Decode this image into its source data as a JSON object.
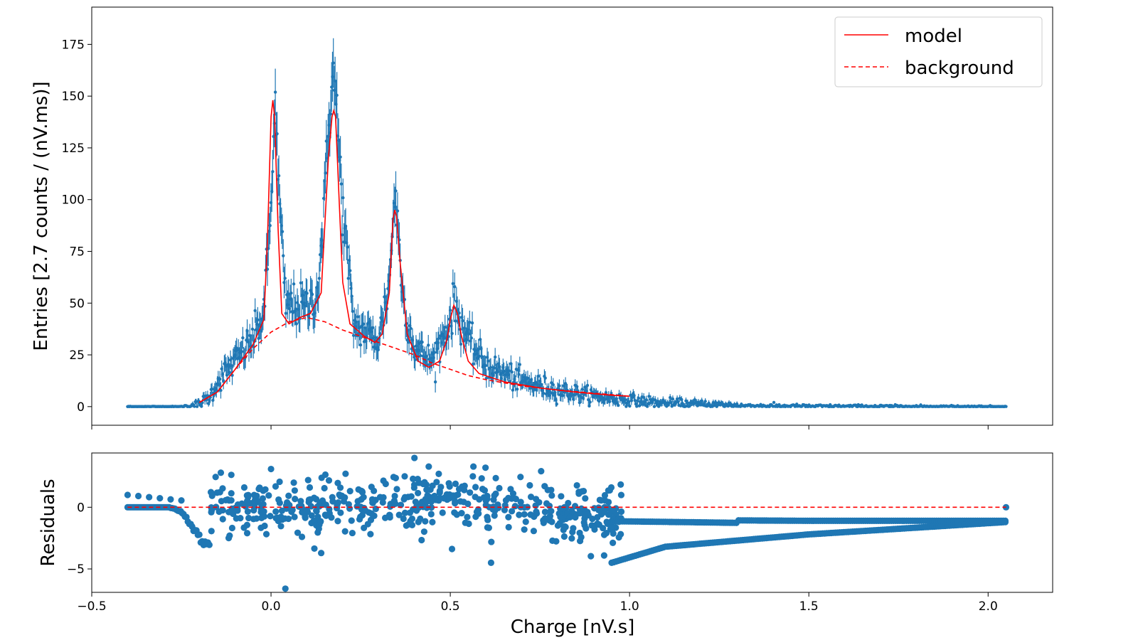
{
  "chart_data": [
    {
      "panel": "main",
      "type": "scatter",
      "title": "",
      "xlabel": "",
      "ylabel": "Entries [2.7 counts / (nV.ms)]",
      "xlim": [
        -0.5,
        2.18
      ],
      "ylim": [
        -9,
        193
      ],
      "xticks": [
        -0.5,
        0.0,
        0.5,
        1.0,
        1.5,
        2.0
      ],
      "yticks": [
        0,
        25,
        50,
        75,
        100,
        125,
        150,
        175
      ],
      "ytick_labels": [
        "0",
        "25",
        "50",
        "75",
        "100",
        "125",
        "150",
        "175"
      ],
      "legend": {
        "position": "top-right",
        "entries": [
          {
            "label": "model",
            "style": "solid",
            "color": "#ff0000"
          },
          {
            "label": "background",
            "style": "dashed",
            "color": "#ff0000"
          }
        ]
      },
      "series": [
        {
          "role": "data with error bars",
          "color": "#1f77b4",
          "x_range": [
            -0.4,
            2.05
          ],
          "profile_x": [
            -0.4,
            -0.25,
            -0.2,
            -0.17,
            -0.15,
            -0.1,
            -0.05,
            -0.02,
            0.0,
            0.01,
            0.02,
            0.04,
            0.1,
            0.13,
            0.15,
            0.17,
            0.18,
            0.2,
            0.23,
            0.27,
            0.3,
            0.33,
            0.345,
            0.37,
            0.4,
            0.45,
            0.5,
            0.51,
            0.55,
            0.6,
            0.7,
            0.8,
            0.9,
            1.0,
            1.1,
            1.3,
            1.5,
            2.05
          ],
          "profile_y": [
            0,
            0,
            1,
            5,
            12,
            22,
            33,
            45,
            95,
            150,
            110,
            50,
            48,
            55,
            100,
            165,
            150,
            95,
            40,
            35,
            32,
            60,
            105,
            50,
            28,
            22,
            42,
            50,
            32,
            20,
            12,
            8,
            5,
            3,
            1.5,
            0.5,
            0.2,
            0
          ]
        },
        {
          "name": "model",
          "color": "#ff0000",
          "style": "solid",
          "x": [
            -0.2,
            -0.15,
            -0.1,
            -0.05,
            -0.02,
            -0.01,
            0.0,
            0.005,
            0.01,
            0.02,
            0.03,
            0.05,
            0.08,
            0.11,
            0.14,
            0.16,
            0.17,
            0.175,
            0.18,
            0.19,
            0.2,
            0.22,
            0.26,
            0.29,
            0.31,
            0.33,
            0.34,
            0.345,
            0.35,
            0.36,
            0.38,
            0.41,
            0.44,
            0.47,
            0.49,
            0.5,
            0.51,
            0.52,
            0.53,
            0.55,
            0.58,
            0.65,
            0.75,
            0.85,
            0.95,
            1.0
          ],
          "y": [
            2,
            7,
            18,
            30,
            42,
            80,
            140,
            148,
            140,
            85,
            45,
            40,
            43,
            45,
            55,
            120,
            140,
            143,
            140,
            100,
            60,
            40,
            34,
            31,
            35,
            55,
            90,
            95,
            92,
            70,
            35,
            22,
            19,
            22,
            32,
            42,
            49,
            45,
            35,
            22,
            16,
            12,
            9,
            7,
            5.5,
            5
          ]
        },
        {
          "name": "background",
          "color": "#ff0000",
          "style": "dashed",
          "x": [
            -0.2,
            -0.15,
            -0.1,
            -0.05,
            0.0,
            0.05,
            0.1,
            0.15,
            0.2,
            0.25,
            0.3,
            0.35,
            0.4,
            0.45,
            0.5,
            0.55,
            0.6,
            0.7,
            0.8,
            0.9,
            1.0
          ],
          "y": [
            2,
            7,
            18,
            28,
            36,
            41,
            43,
            41,
            37,
            34,
            31,
            28,
            25,
            21,
            18,
            15,
            13,
            10,
            8,
            6.5,
            5
          ]
        }
      ]
    },
    {
      "panel": "residuals",
      "type": "scatter",
      "title": "",
      "xlabel": "Charge [nV.s]",
      "ylabel": "Residuals",
      "xlim": [
        -0.5,
        2.18
      ],
      "ylim": [
        -6.9,
        4.4
      ],
      "xticks": [
        -0.5,
        0.0,
        0.5,
        1.0,
        1.5,
        2.0
      ],
      "xtick_labels": [
        "−0.5",
        "0.0",
        "0.5",
        "1.0",
        "1.5",
        "2.0"
      ],
      "yticks": [
        -5,
        0
      ],
      "ytick_labels": [
        "−5",
        "0"
      ],
      "series": [
        {
          "role": "residual points",
          "color": "#1f77b4",
          "x_range": [
            -0.4,
            2.05
          ],
          "band_1_x_range": [
            0.95,
            2.05
          ],
          "band_1_curve": [
            [
              0.95,
              -1.0
            ],
            [
              1.5,
              -1.1
            ],
            [
              2.05,
              -1.1
            ]
          ],
          "band_2_x_range": [
            0.95,
            2.05
          ],
          "band_2_curve": [
            [
              0.95,
              -4.5
            ],
            [
              1.1,
              -3.2
            ],
            [
              1.5,
              -2.2
            ],
            [
              2.05,
              -1.2
            ]
          ],
          "notable_points": [
            [
              0.04,
              -6.6
            ],
            [
              0.4,
              4.0
            ],
            [
              0.0,
              3.1
            ],
            [
              -0.14,
              2.8
            ]
          ]
        },
        {
          "role": "zero reference",
          "color": "#ff0000",
          "style": "dashed",
          "x": [
            -0.4,
            2.05
          ],
          "y": [
            0,
            0
          ]
        }
      ]
    }
  ]
}
